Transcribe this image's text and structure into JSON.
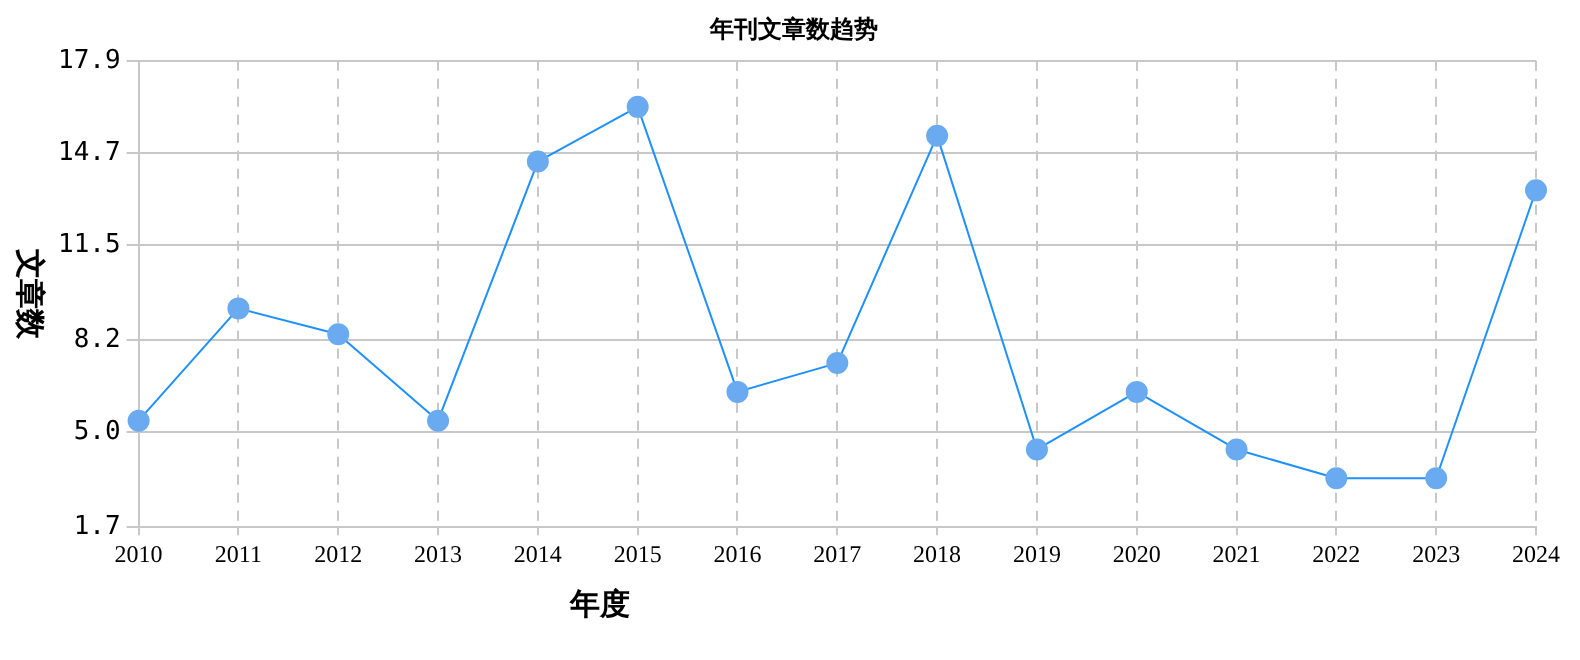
{
  "chart_data": {
    "type": "line",
    "title": "年刊文章数趋势",
    "xlabel": "年度",
    "ylabel": "文章数",
    "categories": [
      "2010",
      "2011",
      "2012",
      "2013",
      "2014",
      "2015",
      "2016",
      "2017",
      "2018",
      "2019",
      "2020",
      "2021",
      "2022",
      "2023",
      "2024"
    ],
    "series": [
      {
        "color": "#1e90ff",
        "values": [
          5.4,
          9.3,
          8.4,
          5.4,
          14.4,
          16.3,
          6.4,
          7.4,
          15.3,
          4.4,
          6.4,
          4.4,
          3.4,
          3.4,
          13.4
        ]
      }
    ],
    "ylim": [
      1.7,
      17.9
    ],
    "yticks": [
      1.7,
      {
        "value": 5,
        "label": "5.0"
      },
      8.2,
      11.5,
      14.7,
      17.9
    ],
    "grid": true,
    "legend": false,
    "marker": "circle",
    "line_style": "solid"
  }
}
